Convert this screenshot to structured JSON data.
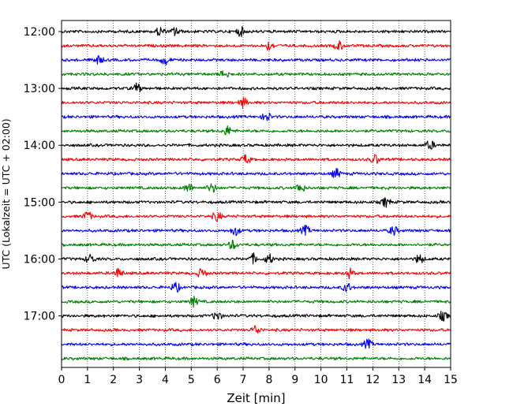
{
  "chart_data": {
    "type": "line",
    "title": "",
    "xlabel": "Zeit  [min]",
    "ylabel": "UTC (Lokalzeit = UTC + 02:00)",
    "xlim": [
      0,
      15
    ],
    "x_ticks": [
      "0",
      "1",
      "2",
      "3",
      "4",
      "5",
      "6",
      "7",
      "8",
      "9",
      "10",
      "11",
      "12",
      "13",
      "14",
      "15"
    ],
    "y_tick_labels": [
      "12:00",
      "13:00",
      "14:00",
      "15:00",
      "16:00",
      "17:00"
    ],
    "grid": "vertical-dotted",
    "trace_colors": [
      "#000000",
      "#ff0000",
      "#0000ff",
      "#008000"
    ],
    "traces": [
      {
        "start": "12:00",
        "color": "#000000",
        "events_min": [
          3.8,
          4.4,
          6.9
        ]
      },
      {
        "start": "12:15",
        "color": "#ff0000",
        "events_min": [
          8.0,
          10.7
        ]
      },
      {
        "start": "12:30",
        "color": "#0000ff",
        "events_min": [
          1.4,
          4.0
        ]
      },
      {
        "start": "12:45",
        "color": "#008000",
        "events_min": [
          6.3
        ]
      },
      {
        "start": "13:00",
        "color": "#000000",
        "events_min": [
          2.9
        ]
      },
      {
        "start": "13:15",
        "color": "#ff0000",
        "events_min": [
          7.0
        ]
      },
      {
        "start": "13:30",
        "color": "#0000ff",
        "events_min": [
          7.9
        ]
      },
      {
        "start": "13:45",
        "color": "#008000",
        "events_min": [
          6.4
        ]
      },
      {
        "start": "14:00",
        "color": "#000000",
        "events_min": [
          14.2
        ]
      },
      {
        "start": "14:15",
        "color": "#ff0000",
        "events_min": [
          7.1,
          12.1
        ]
      },
      {
        "start": "14:30",
        "color": "#0000ff",
        "events_min": [
          10.6
        ]
      },
      {
        "start": "14:45",
        "color": "#008000",
        "events_min": [
          4.9,
          5.8,
          9.2
        ]
      },
      {
        "start": "15:00",
        "color": "#000000",
        "events_min": [
          12.5
        ]
      },
      {
        "start": "15:15",
        "color": "#ff0000",
        "events_min": [
          1.0,
          6.0
        ]
      },
      {
        "start": "15:30",
        "color": "#0000ff",
        "events_min": [
          6.7,
          9.4,
          12.8
        ]
      },
      {
        "start": "15:45",
        "color": "#008000",
        "events_min": [
          6.6
        ]
      },
      {
        "start": "16:00",
        "color": "#000000",
        "events_min": [
          1.1,
          7.4,
          8.0,
          13.8
        ]
      },
      {
        "start": "16:15",
        "color": "#ff0000",
        "events_min": [
          2.2,
          5.4,
          11.1
        ]
      },
      {
        "start": "16:30",
        "color": "#0000ff",
        "events_min": [
          4.4,
          11.0
        ]
      },
      {
        "start": "16:45",
        "color": "#008000",
        "events_min": [
          5.1
        ]
      },
      {
        "start": "17:00",
        "color": "#000000",
        "events_min": [
          6.0,
          14.7
        ]
      },
      {
        "start": "17:15",
        "color": "#ff0000",
        "events_min": [
          7.5
        ]
      },
      {
        "start": "17:30",
        "color": "#0000ff",
        "events_min": [
          11.8
        ]
      },
      {
        "start": "17:45",
        "color": "#008000",
        "events_min": []
      }
    ]
  }
}
